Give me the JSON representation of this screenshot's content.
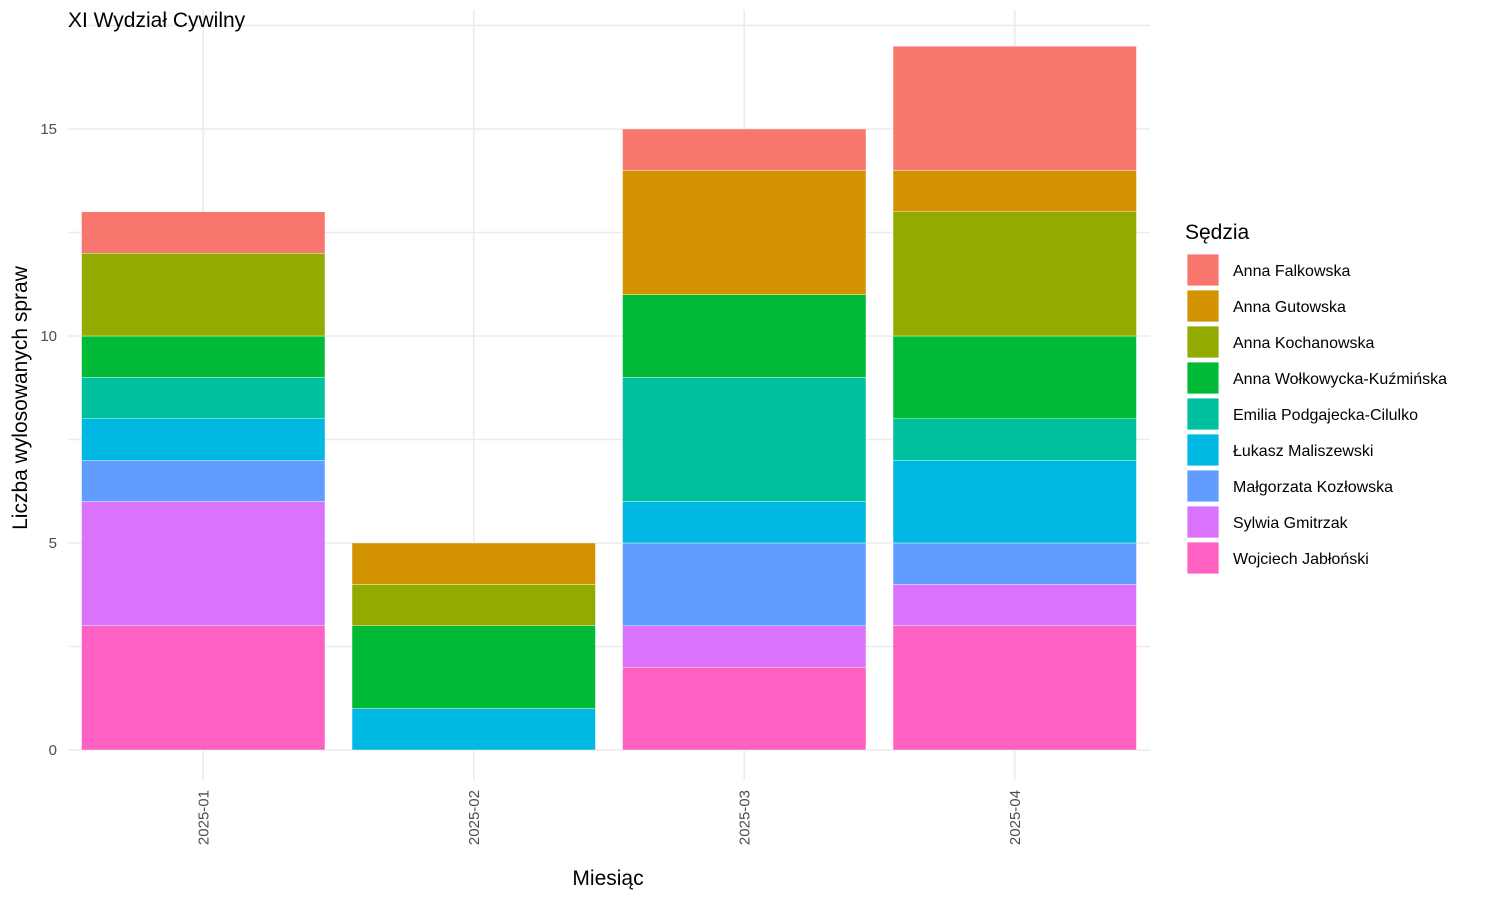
{
  "chart_data": {
    "type": "bar",
    "stacked": true,
    "title": "XI Wydział Cywilny",
    "xlabel": "Miesiąc",
    "ylabel": "Liczba wylosowanych spraw",
    "ylim": [
      0,
      17.85
    ],
    "yticks": [
      0,
      5,
      10,
      15
    ],
    "grid": true,
    "legend_title": "Sędzia",
    "legend_position": "right",
    "categories": [
      "2025-01",
      "2025-02",
      "2025-03",
      "2025-04"
    ],
    "series": [
      {
        "name": "Anna Falkowska",
        "color": "#F8766D",
        "values": [
          1,
          0,
          1,
          3
        ]
      },
      {
        "name": "Anna Gutowska",
        "color": "#D39200",
        "values": [
          0,
          1,
          3,
          1
        ]
      },
      {
        "name": "Anna Kochanowska",
        "color": "#93AA00",
        "values": [
          2,
          1,
          0,
          3
        ]
      },
      {
        "name": "Anna Wołkowycka-Kuźmińska",
        "color": "#00BA38",
        "values": [
          1,
          2,
          2,
          2
        ]
      },
      {
        "name": "Emilia Podgajecka-Cilulko",
        "color": "#00C19F",
        "values": [
          1,
          0,
          3,
          1
        ]
      },
      {
        "name": "Łukasz Maliszewski",
        "color": "#00B9E3",
        "values": [
          1,
          1,
          1,
          2
        ]
      },
      {
        "name": "Małgorzata Kozłowska",
        "color": "#619CFF",
        "values": [
          1,
          0,
          2,
          1
        ]
      },
      {
        "name": "Sylwia Gmitrzak",
        "color": "#DB72FB",
        "values": [
          3,
          0,
          1,
          1
        ]
      },
      {
        "name": "Wojciech Jabłoński",
        "color": "#FF61C3",
        "values": [
          3,
          0,
          2,
          3
        ]
      }
    ]
  }
}
